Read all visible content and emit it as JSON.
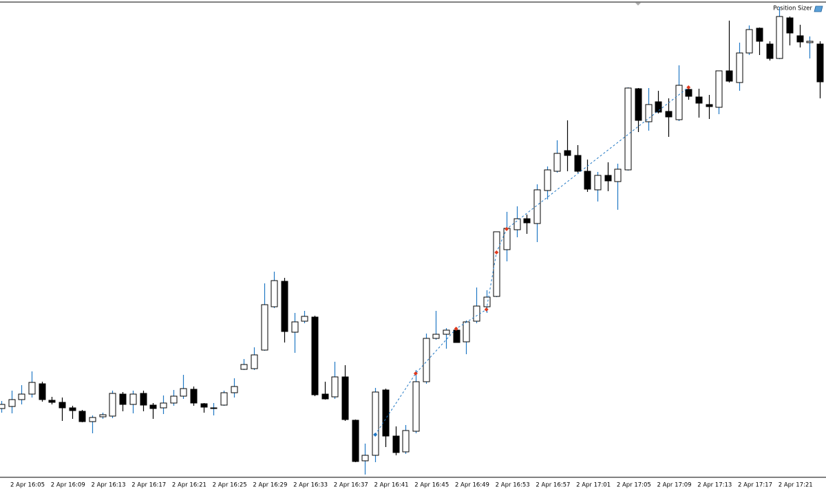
{
  "overlay": {
    "label": "Position Sizer"
  },
  "chart_data": {
    "type": "candlestick",
    "categories": [
      null,
      null,
      null,
      "2 Apr 16:05",
      null,
      null,
      null,
      "2 Apr 16:09",
      null,
      null,
      null,
      "2 Apr 16:13",
      null,
      null,
      null,
      "2 Apr 16:17",
      null,
      null,
      null,
      "2 Apr 16:21",
      null,
      null,
      null,
      "2 Apr 16:25",
      null,
      null,
      null,
      "2 Apr 16:29",
      null,
      null,
      null,
      "2 Apr 16:33",
      null,
      null,
      null,
      "2 Apr 16:37",
      null,
      null,
      null,
      "2 Apr 16:41",
      null,
      null,
      null,
      "2 Apr 16:45",
      null,
      null,
      null,
      "2 Apr 16:49",
      null,
      null,
      null,
      "2 Apr 16:53",
      null,
      null,
      null,
      "2 Apr 16:57",
      null,
      null,
      null,
      "2 Apr 17:01",
      null,
      null,
      null,
      "2 Apr 17:05",
      null,
      null,
      null,
      "2 Apr 17:09",
      null,
      null,
      null,
      "2 Apr 17:13",
      null,
      null,
      null,
      "2 Apr 17:17",
      null,
      null,
      null,
      "2 Apr 17:21",
      null,
      null
    ],
    "open": [
      98,
      101,
      111,
      119,
      134,
      110,
      107,
      99,
      94,
      79,
      86,
      87,
      119,
      104,
      120,
      103,
      99,
      106,
      116,
      126,
      105,
      98,
      103,
      121,
      155,
      156,
      183,
      246,
      283,
      209,
      225,
      231,
      119,
      115,
      144,
      81,
      22,
      30,
      125,
      58,
      35,
      65,
      137,
      200,
      206,
      212,
      195,
      225,
      246,
      261,
      329,
      358,
      374,
      367,
      415,
      443,
      473,
      466,
      443,
      416,
      437,
      428,
      445,
      563,
      515,
      544,
      530,
      518,
      562,
      551,
      540,
      536,
      589,
      572,
      615,
      651,
      628,
      607,
      666,
      640,
      630,
      628
    ],
    "high": [
      109,
      124,
      132,
      152,
      137,
      115,
      114,
      102,
      96,
      88,
      92,
      124,
      122,
      124,
      124,
      106,
      117,
      125,
      147,
      130,
      106,
      106,
      124,
      142,
      170,
      187,
      280,
      297,
      288,
      237,
      240,
      233,
      137,
      166,
      161,
      82,
      47,
      128,
      127,
      72,
      74,
      154,
      207,
      240,
      215,
      216,
      226,
      274,
      270,
      355,
      384,
      392,
      380,
      424,
      450,
      488,
      517,
      481,
      460,
      442,
      456,
      454,
      565,
      564,
      564,
      560,
      549,
      597,
      566,
      563,
      554,
      589,
      662,
      630,
      655,
      652,
      632,
      682,
      668,
      656,
      639,
      632
    ],
    "low": [
      92,
      91,
      104,
      114,
      108,
      104,
      80,
      83,
      78,
      62,
      83,
      84,
      94,
      91,
      94,
      83,
      90,
      102,
      112,
      102,
      92,
      88,
      102,
      114,
      154,
      154,
      182,
      244,
      194,
      179,
      222,
      116,
      111,
      112,
      80,
      20,
      2,
      20,
      42,
      30,
      32,
      62,
      134,
      198,
      185,
      194,
      177,
      222,
      237,
      260,
      312,
      347,
      352,
      340,
      402,
      441,
      443,
      441,
      413,
      399,
      414,
      387,
      444,
      500,
      502,
      527,
      493,
      516,
      547,
      521,
      519,
      526,
      572,
      560,
      612,
      612,
      604,
      606,
      626,
      623,
      607,
      549
    ],
    "close": [
      104,
      111,
      119,
      136,
      111,
      107,
      99,
      95,
      79,
      85,
      89,
      120,
      104,
      119,
      103,
      98,
      106,
      116,
      127,
      106,
      100,
      99,
      121,
      130,
      162,
      176,
      249,
      284,
      210,
      224,
      232,
      118,
      112,
      144,
      82,
      21,
      30,
      122,
      58,
      34,
      66,
      137,
      200,
      206,
      212,
      194,
      224,
      247,
      260,
      355,
      360,
      374,
      368,
      416,
      445,
      469,
      466,
      443,
      417,
      437,
      429,
      446,
      564,
      517,
      540,
      529,
      522,
      568,
      552,
      542,
      537,
      589,
      574,
      615,
      649,
      632,
      607,
      668,
      644,
      631,
      632,
      573
    ],
    "ylim": [
      0,
      688
    ],
    "up_color": "#ffffff",
    "down_color": "#000000",
    "outline_color": "#000000",
    "up_wick_color": "#1f77c4",
    "down_wick_color": "#000000",
    "trades": {
      "index": [
        37,
        41,
        45,
        48,
        49,
        50,
        68
      ],
      "values": [
        60,
        149,
        214,
        242,
        325,
        359,
        565
      ],
      "colors": [
        "#1f77c4",
        "#e03a1e",
        "#e03a1e",
        "#e03a1e",
        "#e03a1e",
        "#e03a1e",
        "#e03a1e"
      ],
      "line_color": "#1f77c4"
    }
  }
}
